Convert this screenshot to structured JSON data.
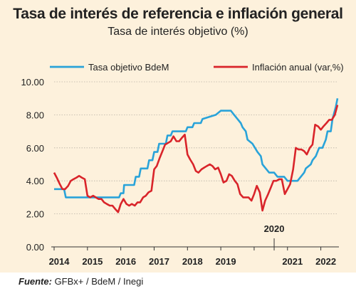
{
  "chart_data": {
    "type": "line",
    "title": "Tasa de interés de referencia e inflación general",
    "subtitle": "Tasa de interés objetivo (%)",
    "x_ticks": [
      "2014",
      "2015",
      "2016",
      "2017",
      "2018",
      "2019",
      "2020",
      "2021",
      "2022"
    ],
    "y_ticks": [
      "0.00",
      "2.00",
      "4.00",
      "6.00",
      "8.00",
      "10.00"
    ],
    "ylim": [
      0,
      10
    ],
    "xlim": [
      2014.0,
      2022.5
    ],
    "grid": true,
    "legend_position": "top",
    "annotation": "2020",
    "series": [
      {
        "name": "Tasa objetivo BdeM",
        "color": "#29a3d9",
        "x": [
          2014.0,
          2014.3,
          2014.35,
          2014.45,
          2014.5,
          2014.9,
          2015.0,
          2015.95,
          2016.0,
          2016.08,
          2016.1,
          2016.4,
          2016.45,
          2016.55,
          2016.6,
          2016.8,
          2016.85,
          2016.95,
          2017.0,
          2017.1,
          2017.15,
          2017.35,
          2017.4,
          2017.5,
          2017.55,
          2017.95,
          2018.0,
          2018.15,
          2018.2,
          2018.4,
          2018.45,
          2018.85,
          2019.0,
          2019.05,
          2019.2,
          2019.3,
          2019.4,
          2019.5,
          2019.6,
          2019.65,
          2019.75,
          2019.8,
          2019.95,
          2020.1,
          2020.2,
          2020.25,
          2020.35,
          2020.45,
          2020.55,
          2020.6,
          2020.7,
          2020.75,
          2020.8,
          2020.85,
          2020.9,
          2021.0,
          2021.1,
          2021.15,
          2021.3,
          2021.4,
          2021.5,
          2021.55,
          2021.7,
          2021.75,
          2021.85,
          2021.95,
          2022.05,
          2022.15,
          2022.2,
          2022.3,
          2022.35,
          2022.45,
          2022.5
        ],
        "values": [
          3.5,
          3.5,
          3.0,
          3.0,
          3.0,
          3.0,
          3.0,
          3.0,
          3.25,
          3.25,
          3.75,
          3.75,
          4.25,
          4.25,
          4.75,
          4.75,
          5.25,
          5.25,
          5.75,
          5.75,
          6.25,
          6.25,
          6.75,
          6.75,
          7.0,
          7.0,
          7.25,
          7.25,
          7.5,
          7.5,
          7.75,
          8.0,
          8.25,
          8.25,
          8.25,
          8.25,
          8.0,
          7.75,
          7.5,
          7.25,
          7.0,
          6.5,
          6.25,
          5.75,
          5.5,
          5.0,
          4.75,
          4.5,
          4.5,
          4.5,
          4.25,
          4.25,
          4.25,
          4.25,
          4.25,
          4.0,
          4.0,
          4.0,
          4.0,
          4.25,
          4.5,
          4.75,
          5.0,
          5.25,
          5.5,
          6.0,
          6.0,
          6.5,
          7.0,
          7.0,
          7.75,
          8.5,
          9.0
        ]
      },
      {
        "name": "Inflación anual (var,%)",
        "color": "#d9242a",
        "x": [
          2014.0,
          2014.08,
          2014.17,
          2014.25,
          2014.33,
          2014.42,
          2014.5,
          2014.58,
          2014.67,
          2014.75,
          2014.83,
          2014.92,
          2015.0,
          2015.08,
          2015.17,
          2015.25,
          2015.33,
          2015.42,
          2015.5,
          2015.58,
          2015.67,
          2015.75,
          2015.83,
          2015.92,
          2016.0,
          2016.08,
          2016.17,
          2016.25,
          2016.33,
          2016.42,
          2016.5,
          2016.58,
          2016.67,
          2016.75,
          2016.83,
          2016.92,
          2017.0,
          2017.08,
          2017.17,
          2017.25,
          2017.33,
          2017.42,
          2017.5,
          2017.58,
          2017.67,
          2017.75,
          2017.83,
          2017.92,
          2018.0,
          2018.08,
          2018.17,
          2018.25,
          2018.33,
          2018.42,
          2018.5,
          2018.58,
          2018.67,
          2018.75,
          2018.83,
          2018.92,
          2019.0,
          2019.08,
          2019.17,
          2019.25,
          2019.33,
          2019.42,
          2019.5,
          2019.58,
          2019.67,
          2019.75,
          2019.83,
          2019.92,
          2020.0,
          2020.08,
          2020.17,
          2020.25,
          2020.33,
          2020.42,
          2020.5,
          2020.58,
          2020.67,
          2020.75,
          2020.83,
          2020.92,
          2021.0,
          2021.08,
          2021.17,
          2021.25,
          2021.33,
          2021.42,
          2021.5,
          2021.58,
          2021.67,
          2021.75,
          2021.83,
          2021.92,
          2022.0,
          2022.08,
          2022.17,
          2022.25,
          2022.33,
          2022.42,
          2022.5
        ],
        "values": [
          4.5,
          4.2,
          3.8,
          3.5,
          3.5,
          3.7,
          4.0,
          4.1,
          4.2,
          4.3,
          4.2,
          4.1,
          3.1,
          3.0,
          3.1,
          3.0,
          2.9,
          2.9,
          2.7,
          2.6,
          2.5,
          2.5,
          2.3,
          2.1,
          2.6,
          2.9,
          2.6,
          2.5,
          2.6,
          2.5,
          2.7,
          2.7,
          3.0,
          3.1,
          3.3,
          3.4,
          4.7,
          4.9,
          5.4,
          5.8,
          6.2,
          6.3,
          6.4,
          6.7,
          6.4,
          6.4,
          6.6,
          6.8,
          5.6,
          5.3,
          5.0,
          4.6,
          4.5,
          4.7,
          4.8,
          4.9,
          5.0,
          4.9,
          4.7,
          4.8,
          4.4,
          3.9,
          4.0,
          4.4,
          4.3,
          4.0,
          3.8,
          3.2,
          3.0,
          3.0,
          3.0,
          2.8,
          3.2,
          3.7,
          3.3,
          2.2,
          2.8,
          3.2,
          3.6,
          4.0,
          4.0,
          4.1,
          4.1,
          3.2,
          3.5,
          3.8,
          4.7,
          6.0,
          5.9,
          5.9,
          5.8,
          5.6,
          6.0,
          6.2,
          7.4,
          7.3,
          7.1,
          7.3,
          7.5,
          7.7,
          7.7,
          8.0,
          8.6
        ]
      }
    ]
  },
  "source": {
    "label": "Fuente:",
    "text": " GFBx+ / BdeM / Inegi"
  }
}
